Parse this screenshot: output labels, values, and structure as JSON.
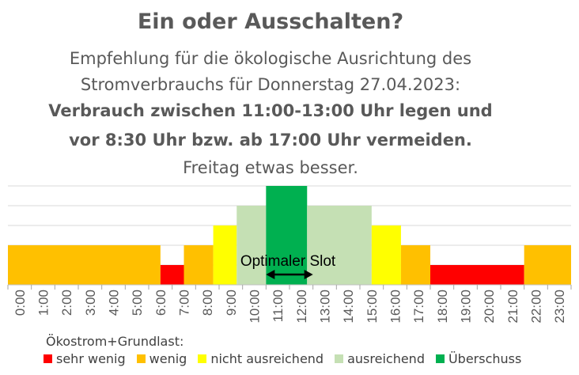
{
  "header": {
    "title": "Ein oder Ausschalten?",
    "line1": "Empfehlung für die ökologische Ausrichtung des",
    "line2": "Stromverbrauchs für Donnerstag 27.04.2023:",
    "line3": "Verbrauch zwischen 11:00-13:00 Uhr legen und",
    "line4": "vor 8:30 Uhr bzw. ab 17:00 Uhr vermeiden.",
    "line5": "Freitag  etwas besser."
  },
  "colors": {
    "sehr_wenig": "#ff0000",
    "wenig": "#ffc000",
    "nicht_ausreichend": "#ffff00",
    "ausreichend": "#c5e0b4",
    "ueberschuss": "#00b050"
  },
  "chart_data": {
    "type": "bar",
    "annotation": "Optimaler Slot",
    "annotation_range": [
      11.0,
      13.0
    ],
    "x_tick_labels": [
      "0:00",
      "1:00",
      "2:00",
      "3:00",
      "4:00",
      "5:00",
      "6:00",
      "7:00",
      "8:00",
      "9:00",
      "10:00",
      "11:00",
      "12:00",
      "13:00",
      "14:00",
      "15:00",
      "16:00",
      "17:00",
      "18:00",
      "19:00",
      "20:00",
      "21:00",
      "22:00",
      "23:00"
    ],
    "xlim": [
      0,
      24
    ],
    "ylim": [
      0,
      5
    ],
    "grid": true,
    "segments": [
      {
        "start": 0.0,
        "end": 6.5,
        "level": 2,
        "category": "wenig"
      },
      {
        "start": 6.5,
        "end": 7.5,
        "level": 1,
        "category": "sehr_wenig"
      },
      {
        "start": 7.5,
        "end": 8.75,
        "level": 2,
        "category": "wenig"
      },
      {
        "start": 8.75,
        "end": 9.75,
        "level": 3,
        "category": "nicht_ausreichend"
      },
      {
        "start": 9.75,
        "end": 11.0,
        "level": 4,
        "category": "ausreichend"
      },
      {
        "start": 11.0,
        "end": 12.75,
        "level": 5,
        "category": "ueberschuss"
      },
      {
        "start": 12.75,
        "end": 15.5,
        "level": 4,
        "category": "ausreichend"
      },
      {
        "start": 15.5,
        "end": 16.75,
        "level": 3,
        "category": "nicht_ausreichend"
      },
      {
        "start": 16.75,
        "end": 18.0,
        "level": 2,
        "category": "wenig"
      },
      {
        "start": 18.0,
        "end": 22.0,
        "level": 1,
        "category": "sehr_wenig"
      },
      {
        "start": 22.0,
        "end": 24.0,
        "level": 2,
        "category": "wenig"
      }
    ]
  },
  "legend": {
    "title": "Ökostrom+Grundlast:",
    "items": [
      {
        "key": "sehr_wenig",
        "label": "sehr wenig"
      },
      {
        "key": "wenig",
        "label": "wenig"
      },
      {
        "key": "nicht_ausreichend",
        "label": "nicht ausreichend"
      },
      {
        "key": "ausreichend",
        "label": "ausreichend"
      },
      {
        "key": "ueberschuss",
        "label": "Überschuss"
      }
    ]
  }
}
